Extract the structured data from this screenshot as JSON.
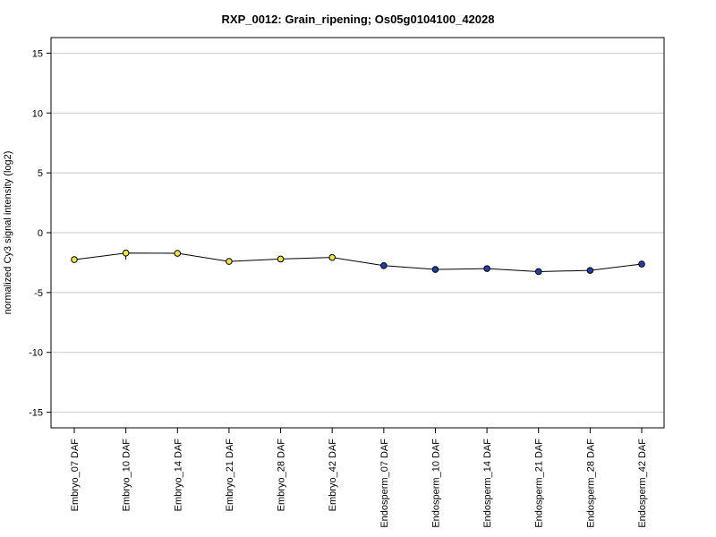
{
  "chart_data": {
    "type": "line",
    "title": "RXP_0012: Grain_ripening; Os05g0104100_42028",
    "ylabel": "normalized Cy3 signal intensity (log2)",
    "xlabel": "",
    "ylim": [
      -16.3,
      16.3
    ],
    "yticks": [
      15,
      10,
      5,
      0,
      -5,
      -10,
      -15
    ],
    "grid": true,
    "categories": [
      "Embryo_07 DAF",
      "Embryo_10 DAF",
      "Embryo_14 DAF",
      "Embryo_21 DAF",
      "Embryo_28 DAF",
      "Embryo_42 DAF",
      "Endosperm_07 DAF",
      "Endosperm_10 DAF",
      "Endosperm_14 DAF",
      "Endosperm_21 DAF",
      "Endosperm_28 DAF",
      "Endosperm_42 DAF"
    ],
    "values": [
      -2.25,
      -1.7,
      -1.72,
      -2.4,
      -2.2,
      -2.07,
      -2.75,
      -3.07,
      -3.0,
      -3.25,
      -3.15,
      -2.62
    ],
    "error_low": [
      null,
      -2.25,
      null,
      null,
      null,
      null,
      null,
      null,
      null,
      null,
      null,
      null
    ],
    "error_high": [
      null,
      -1.7,
      null,
      null,
      null,
      null,
      null,
      null,
      null,
      null,
      null,
      null
    ],
    "point_colors": [
      "#f0e442",
      "#f0e442",
      "#f0e442",
      "#f0e442",
      "#f0e442",
      "#f0e442",
      "#1f3fa6",
      "#1f3fa6",
      "#1f3fa6",
      "#1f3fa6",
      "#1f3fa6",
      "#1f3fa6"
    ],
    "line_color": "#000000",
    "grid_color": "#c8c8c8"
  }
}
